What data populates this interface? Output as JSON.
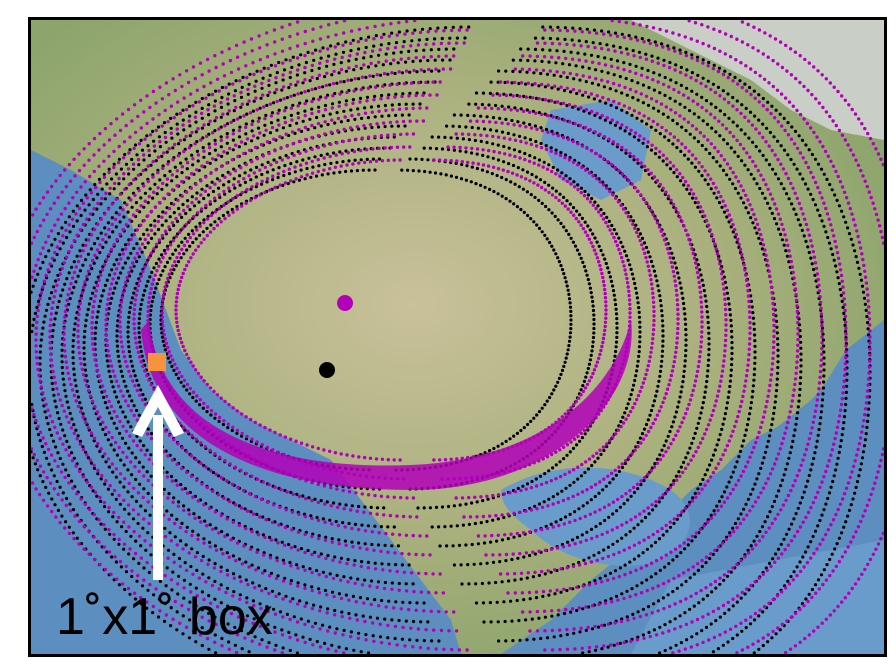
{
  "caption": "1˚x1˚ box",
  "colors": {
    "magenta_series": "#b100b8",
    "black_series": "#000000",
    "box_marker": "#f7933f",
    "arrow": "#ffffff",
    "ocean": "#5d8ec0",
    "land_green": "#98ab72",
    "land_tan": "#c8c09a"
  },
  "markers": [
    {
      "name": "magenta-site-dot",
      "color": "magenta"
    },
    {
      "name": "black-site-dot",
      "color": "black"
    },
    {
      "name": "box-marker",
      "shape": "square",
      "color": "orange"
    }
  ],
  "icons": [
    "up-arrow-icon"
  ]
}
